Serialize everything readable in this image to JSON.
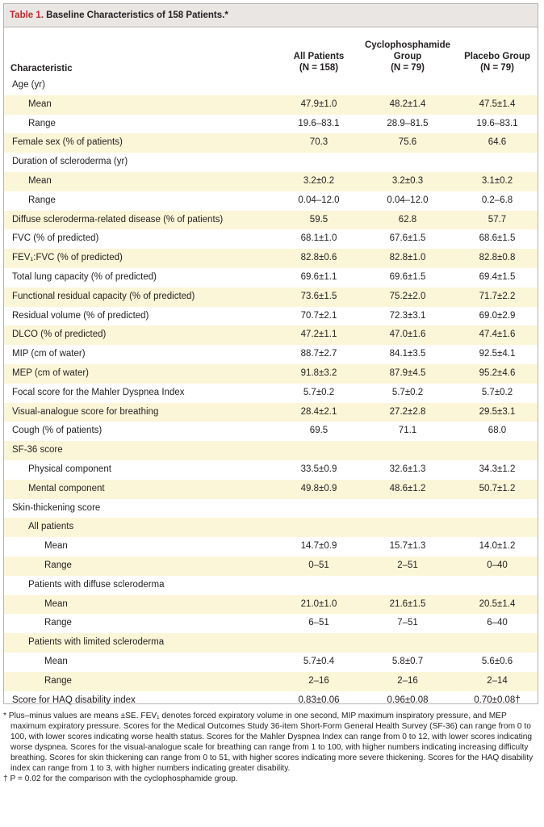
{
  "table": {
    "label": "Table 1.",
    "title": "Baseline Characteristics of 158 Patients.*",
    "header": {
      "characteristic": "Characteristic",
      "all": [
        "All Patients",
        "(N = 158)"
      ],
      "cyc": [
        "Cyclophosphamide",
        "Group",
        "(N = 79)"
      ],
      "placebo": [
        "Placebo Group",
        "(N = 79)"
      ]
    },
    "rows": [
      {
        "label": "Age (yr)",
        "indent": 0,
        "values": [
          "",
          "",
          ""
        ]
      },
      {
        "label": "Mean",
        "indent": 1,
        "values": [
          "47.9±1.0",
          "48.2±1.4",
          "47.5±1.4"
        ]
      },
      {
        "label": "Range",
        "indent": 1,
        "values": [
          "19.6–83.1",
          "28.9–81.5",
          "19.6–83.1"
        ]
      },
      {
        "label": "Female sex (% of patients)",
        "indent": 0,
        "values": [
          "70.3",
          "75.6",
          "64.6"
        ]
      },
      {
        "label": "Duration of scleroderma (yr)",
        "indent": 0,
        "values": [
          "",
          "",
          ""
        ]
      },
      {
        "label": "Mean",
        "indent": 1,
        "values": [
          "3.2±0.2",
          "3.2±0.3",
          "3.1±0.2"
        ]
      },
      {
        "label": "Range",
        "indent": 1,
        "values": [
          "0.04–12.0",
          "0.04–12.0",
          "0.2–6.8"
        ]
      },
      {
        "label": "Diffuse scleroderma-related disease (% of patients)",
        "indent": 0,
        "values": [
          "59.5",
          "62.8",
          "57.7"
        ]
      },
      {
        "label": "FVC (% of predicted)",
        "indent": 0,
        "values": [
          "68.1±1.0",
          "67.6±1.5",
          "68.6±1.5"
        ]
      },
      {
        "label": "FEV₁:FVC (% of predicted)",
        "indent": 0,
        "values": [
          "82.8±0.6",
          "82.8±1.0",
          "82.8±0.8"
        ]
      },
      {
        "label": "Total lung capacity (% of predicted)",
        "indent": 0,
        "values": [
          "69.6±1.1",
          "69.6±1.5",
          "69.4±1.5"
        ]
      },
      {
        "label": "Functional residual capacity (% of predicted)",
        "indent": 0,
        "values": [
          "73.6±1.5",
          "75.2±2.0",
          "71.7±2.2"
        ]
      },
      {
        "label": "Residual volume (% of predicted)",
        "indent": 0,
        "values": [
          "70.7±2.1",
          "72.3±3.1",
          "69.0±2.9"
        ]
      },
      {
        "label": "DLCO (% of predicted)",
        "indent": 0,
        "values": [
          "47.2±1.1",
          "47.0±1.6",
          "47.4±1.6"
        ]
      },
      {
        "label": "MIP (cm of water)",
        "indent": 0,
        "values": [
          "88.7±2.7",
          "84.1±3.5",
          "92.5±4.1"
        ]
      },
      {
        "label": "MEP (cm of water)",
        "indent": 0,
        "values": [
          "91.8±3.2",
          "87.9±4.5",
          "95.2±4.6"
        ]
      },
      {
        "label": "Focal score for the Mahler Dyspnea Index",
        "indent": 0,
        "values": [
          "5.7±0.2",
          "5.7±0.2",
          "5.7±0.2"
        ]
      },
      {
        "label": "Visual-analogue score for breathing",
        "indent": 0,
        "values": [
          "28.4±2.1",
          "27.2±2.8",
          "29.5±3.1"
        ]
      },
      {
        "label": "Cough (% of patients)",
        "indent": 0,
        "values": [
          "69.5",
          "71.1",
          "68.0"
        ]
      },
      {
        "label": "SF-36 score",
        "indent": 0,
        "values": [
          "",
          "",
          ""
        ]
      },
      {
        "label": "Physical component",
        "indent": 1,
        "values": [
          "33.5±0.9",
          "32.6±1.3",
          "34.3±1.2"
        ]
      },
      {
        "label": "Mental component",
        "indent": 1,
        "values": [
          "49.8±0.9",
          "48.6±1.2",
          "50.7±1.2"
        ]
      },
      {
        "label": "Skin-thickening score",
        "indent": 0,
        "values": [
          "",
          "",
          ""
        ]
      },
      {
        "label": "All patients",
        "indent": 1,
        "values": [
          "",
          "",
          ""
        ]
      },
      {
        "label": "Mean",
        "indent": 2,
        "values": [
          "14.7±0.9",
          "15.7±1.3",
          "14.0±1.2"
        ]
      },
      {
        "label": "Range",
        "indent": 2,
        "values": [
          "0–51",
          "2–51",
          "0–40"
        ]
      },
      {
        "label": "Patients with diffuse scleroderma",
        "indent": 1,
        "values": [
          "",
          "",
          ""
        ]
      },
      {
        "label": "Mean",
        "indent": 2,
        "values": [
          "21.0±1.0",
          "21.6±1.5",
          "20.5±1.4"
        ]
      },
      {
        "label": "Range",
        "indent": 2,
        "values": [
          "6–51",
          "7–51",
          "6–40"
        ]
      },
      {
        "label": "Patients with limited scleroderma",
        "indent": 1,
        "values": [
          "",
          "",
          ""
        ]
      },
      {
        "label": "Mean",
        "indent": 2,
        "values": [
          "5.7±0.4",
          "5.8±0.7",
          "5.6±0.6"
        ]
      },
      {
        "label": "Range",
        "indent": 2,
        "values": [
          "2–16",
          "2–16",
          "2–14"
        ]
      },
      {
        "label": "Score for HAQ disability index",
        "indent": 0,
        "values": [
          "0.83±0.06",
          "0.96±0.08",
          "0.70±0.08†"
        ]
      }
    ]
  },
  "footnotes": [
    "* Plus–minus values are means ±SE. FEV₁ denotes forced expiratory volume in one second, MIP maximum inspiratory pressure, and MEP maximum expiratory pressure. Scores for the Medical Outcomes Study 36-item Short-Form General Health Survey (SF-36) can range from 0 to 100, with lower scores indicating worse health status. Scores for the Mahler Dyspnea Index can range from 0 to 12, with lower scores indicating worse dyspnea. Scores for the visual-analogue scale for breathing can range from 1 to 100, with higher numbers indicating increasing difficulty breathing. Scores for skin thickening can range from 0 to 51, with higher scores indicating more severe thickening. Scores for the HAQ disability index can range from 1 to 3, with higher numbers indicating greater disability.",
    "† P = 0.02 for the comparison with the cyclophosphamide group."
  ],
  "colors": {
    "title_label": "#c0282d",
    "title_bar_bg": "#e9e6e4",
    "row_shade": "#fcf6d8",
    "border": "#b9b6b2"
  }
}
